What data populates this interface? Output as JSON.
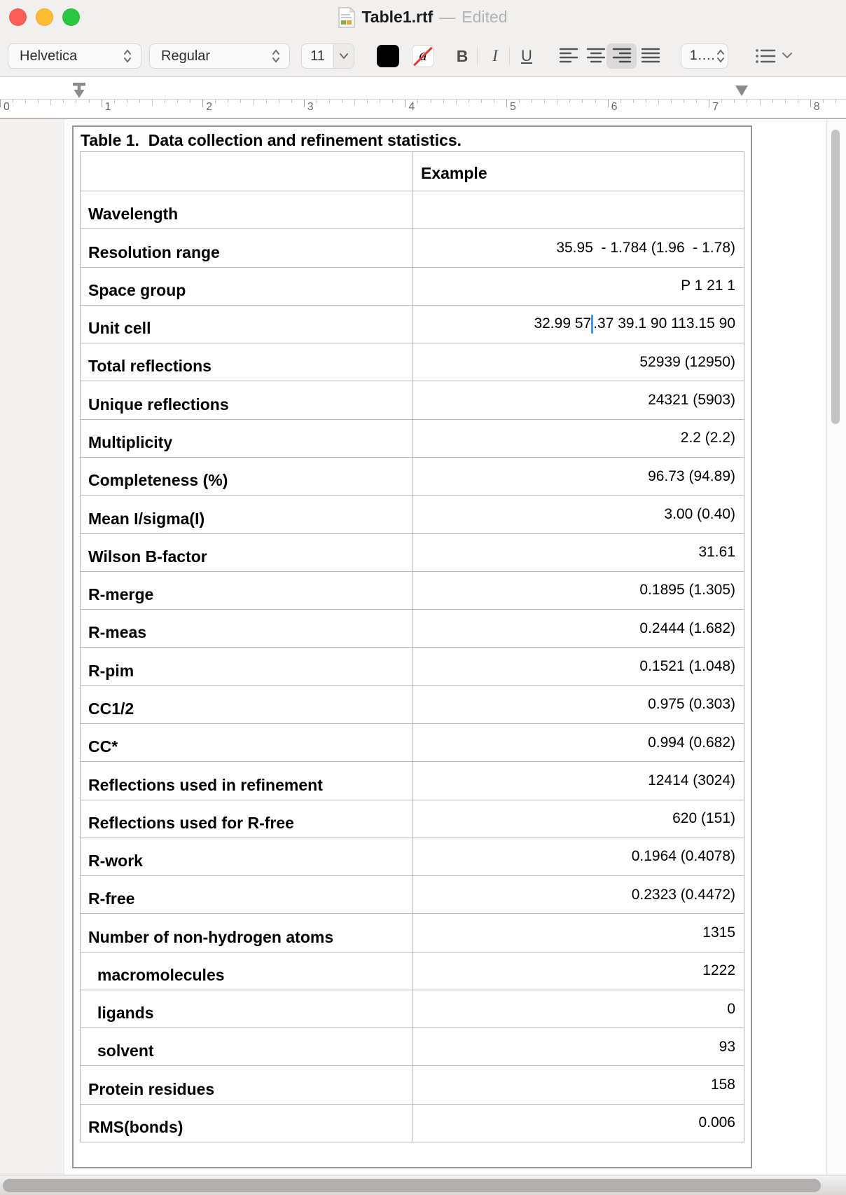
{
  "window": {
    "filename": "Table1.rtf",
    "separator": "—",
    "status": "Edited",
    "traffic_lights": [
      "close",
      "minimize",
      "zoom"
    ]
  },
  "toolbar": {
    "font_family": "Helvetica",
    "font_style": "Regular",
    "font_size": "11",
    "bold_label": "B",
    "italic_label": "I",
    "underline_label": "U",
    "highlight_letter": "a",
    "line_spacing": "1....",
    "alignment_selected": "right",
    "icons": [
      "text-color-swatch",
      "highlight-color-swatch",
      "align-left-icon",
      "align-center-icon",
      "align-right-icon",
      "align-justify-icon",
      "list-style-icon"
    ]
  },
  "ruler": {
    "numbers": [
      "0",
      "1",
      "2",
      "3",
      "4",
      "5",
      "6",
      "7",
      "8"
    ]
  },
  "colors": {
    "traffic_red": "#ff5f57",
    "traffic_yellow": "#febc2e",
    "traffic_green": "#28c840",
    "caret_blue": "#3b99fc",
    "highlight_slash_red": "#e0382e",
    "text_color_swatch": "#000000"
  },
  "document": {
    "title": "Table 1.  Data collection and refinement statistics.",
    "table": {
      "header": {
        "label": "",
        "value": "Example"
      },
      "rows": [
        {
          "label": "Wavelength",
          "value": ""
        },
        {
          "label": "Resolution range",
          "value": "35.95  - 1.784 (1.96  - 1.78)"
        },
        {
          "label": "Space group",
          "value": "P 1 21 1"
        },
        {
          "label": "Unit cell",
          "value": "32.99 57.37 39.1 90 113.15 90",
          "caret_after": "32.99 57"
        },
        {
          "label": "Total reflections",
          "value": "52939 (12950)"
        },
        {
          "label": "Unique reflections",
          "value": "24321 (5903)"
        },
        {
          "label": "Multiplicity",
          "value": "2.2 (2.2)"
        },
        {
          "label": "Completeness (%)",
          "value": "96.73 (94.89)"
        },
        {
          "label": "Mean I/sigma(I)",
          "value": "3.00 (0.40)"
        },
        {
          "label": "Wilson B-factor",
          "value": "31.61"
        },
        {
          "label": "R-merge",
          "value": "0.1895 (1.305)"
        },
        {
          "label": "R-meas",
          "value": "0.2444 (1.682)"
        },
        {
          "label": "R-pim",
          "value": "0.1521 (1.048)"
        },
        {
          "label": "CC1/2",
          "value": "0.975 (0.303)"
        },
        {
          "label": "CC*",
          "value": "0.994 (0.682)"
        },
        {
          "label": "Reflections used in refinement",
          "value": "12414 (3024)"
        },
        {
          "label": "Reflections used for R-free",
          "value": "620 (151)"
        },
        {
          "label": "R-work",
          "value": "0.1964 (0.4078)"
        },
        {
          "label": "R-free",
          "value": "0.2323 (0.4472)"
        },
        {
          "label": "Number of non-hydrogen atoms",
          "value": "1315"
        },
        {
          "label": "macromolecules",
          "value": "1222",
          "indent": true
        },
        {
          "label": "ligands",
          "value": "0",
          "indent": true
        },
        {
          "label": "solvent",
          "value": "93",
          "indent": true
        },
        {
          "label": "Protein residues",
          "value": "158"
        },
        {
          "label": "RMS(bonds)",
          "value": "0.006"
        }
      ]
    }
  }
}
